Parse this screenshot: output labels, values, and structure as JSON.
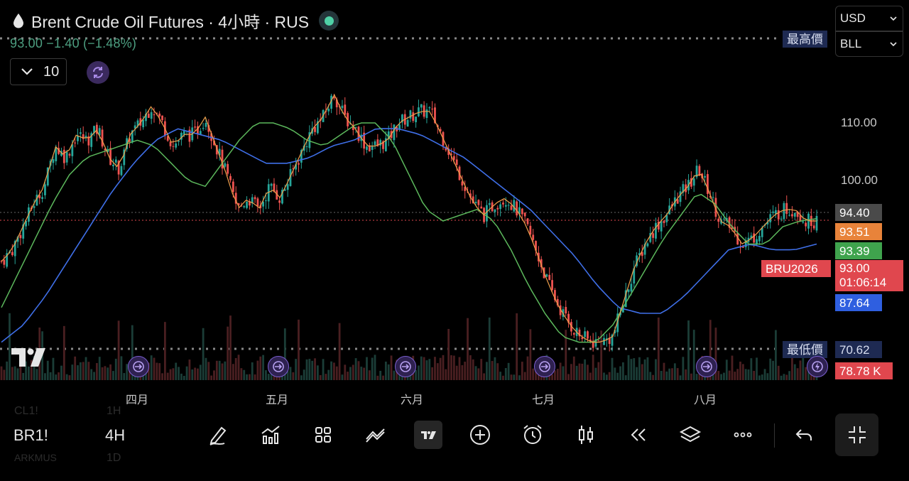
{
  "header": {
    "title": "Brent Crude Oil Futures · 4小時 · RUS",
    "price_line": "93.00  −1.40 (−1.48%)",
    "indicator_count": "10"
  },
  "selectors": {
    "currency": "USD",
    "unit": "BLL"
  },
  "price_axis": {
    "labels": [
      "110.00",
      "100.00"
    ],
    "high_tag": "最高價",
    "low_tag": "最低價",
    "tags": [
      {
        "value": "94.40",
        "color": "#4a4a4a"
      },
      {
        "value": "93.51",
        "color": "#e8833a"
      },
      {
        "value": "93.39",
        "color": "#3fa34d"
      },
      {
        "value": "87.64",
        "color": "#2f5fe0"
      }
    ],
    "current": {
      "symbol": "BRU2026",
      "value": "93.00",
      "countdown": "01:06:14",
      "color": "#e0474e"
    },
    "low_value": "70.62",
    "volume_value": "78.78 K"
  },
  "time_axis": [
    "四月",
    "五月",
    "六月",
    "七月",
    "八月"
  ],
  "toolbar": {
    "symbol": "BR1!",
    "timeframe": "4H",
    "ghost_top": [
      "CL1!",
      "1H"
    ],
    "ghost_bottom": [
      "ARKMUS",
      "1D"
    ],
    "icons": [
      "draw-icon",
      "indicators-icon",
      "layout-grid-icon",
      "compare-icon",
      "tradingview-icon",
      "add-icon",
      "alarm-icon",
      "candles-icon",
      "replay-icon",
      "layers-icon",
      "more-icon",
      "undo-icon"
    ]
  },
  "colors": {
    "up": "#26a69a",
    "down": "#ef5350",
    "ma_fast": "#f0a04b",
    "ma_mid": "#5cb85c",
    "ma_slow": "#3f6fe8"
  },
  "chart_data": {
    "type": "candlestick",
    "timeframe": "4H",
    "x_labels": [
      "四月",
      "五月",
      "六月",
      "七月",
      "八月"
    ],
    "ylim": [
      70.62,
      116.5
    ],
    "close_path": [
      86,
      88,
      92,
      96,
      99,
      106,
      104,
      108,
      107,
      109,
      104,
      102,
      108,
      110,
      113,
      110,
      106,
      108,
      108,
      111,
      106,
      101,
      95,
      97,
      95,
      99,
      97,
      101,
      105,
      109,
      111,
      115,
      111,
      109,
      106,
      106,
      107,
      110,
      111,
      112,
      112,
      108,
      104,
      100,
      96,
      94,
      96,
      97,
      95,
      92,
      87,
      82,
      78,
      75,
      73,
      72,
      72,
      73,
      79,
      85,
      89,
      92,
      94,
      97,
      99,
      102,
      98,
      93,
      92,
      89,
      90,
      92,
      94,
      95,
      95,
      93,
      93
    ],
    "ma_slow_path": [
      72,
      75,
      80,
      86,
      92,
      98,
      103,
      107,
      109,
      108,
      107,
      105,
      103,
      103,
      104,
      106,
      107,
      109,
      109,
      108,
      106,
      104,
      101,
      98,
      95,
      91,
      87,
      82,
      78,
      77,
      77,
      80,
      84,
      88,
      89,
      88,
      88,
      89
    ],
    "ma_mid_path": [
      78,
      84,
      90,
      96,
      101,
      104,
      105,
      106,
      107,
      106,
      103,
      100,
      99,
      103,
      107,
      110,
      110,
      109,
      107,
      106,
      108,
      110,
      110,
      107,
      101,
      95,
      93,
      94,
      95,
      93,
      88,
      82,
      77,
      73,
      72,
      72,
      75,
      80,
      85,
      90,
      94,
      98,
      96,
      92,
      89,
      89,
      92,
      93,
      93.4
    ],
    "volume_value": "78.78K",
    "high_marker": "最高價",
    "low_marker": "最低價",
    "low_value": 70.62,
    "last_value": 93.0,
    "ma_values": [
      93.51,
      93.39,
      87.64
    ],
    "event_count": 6
  }
}
